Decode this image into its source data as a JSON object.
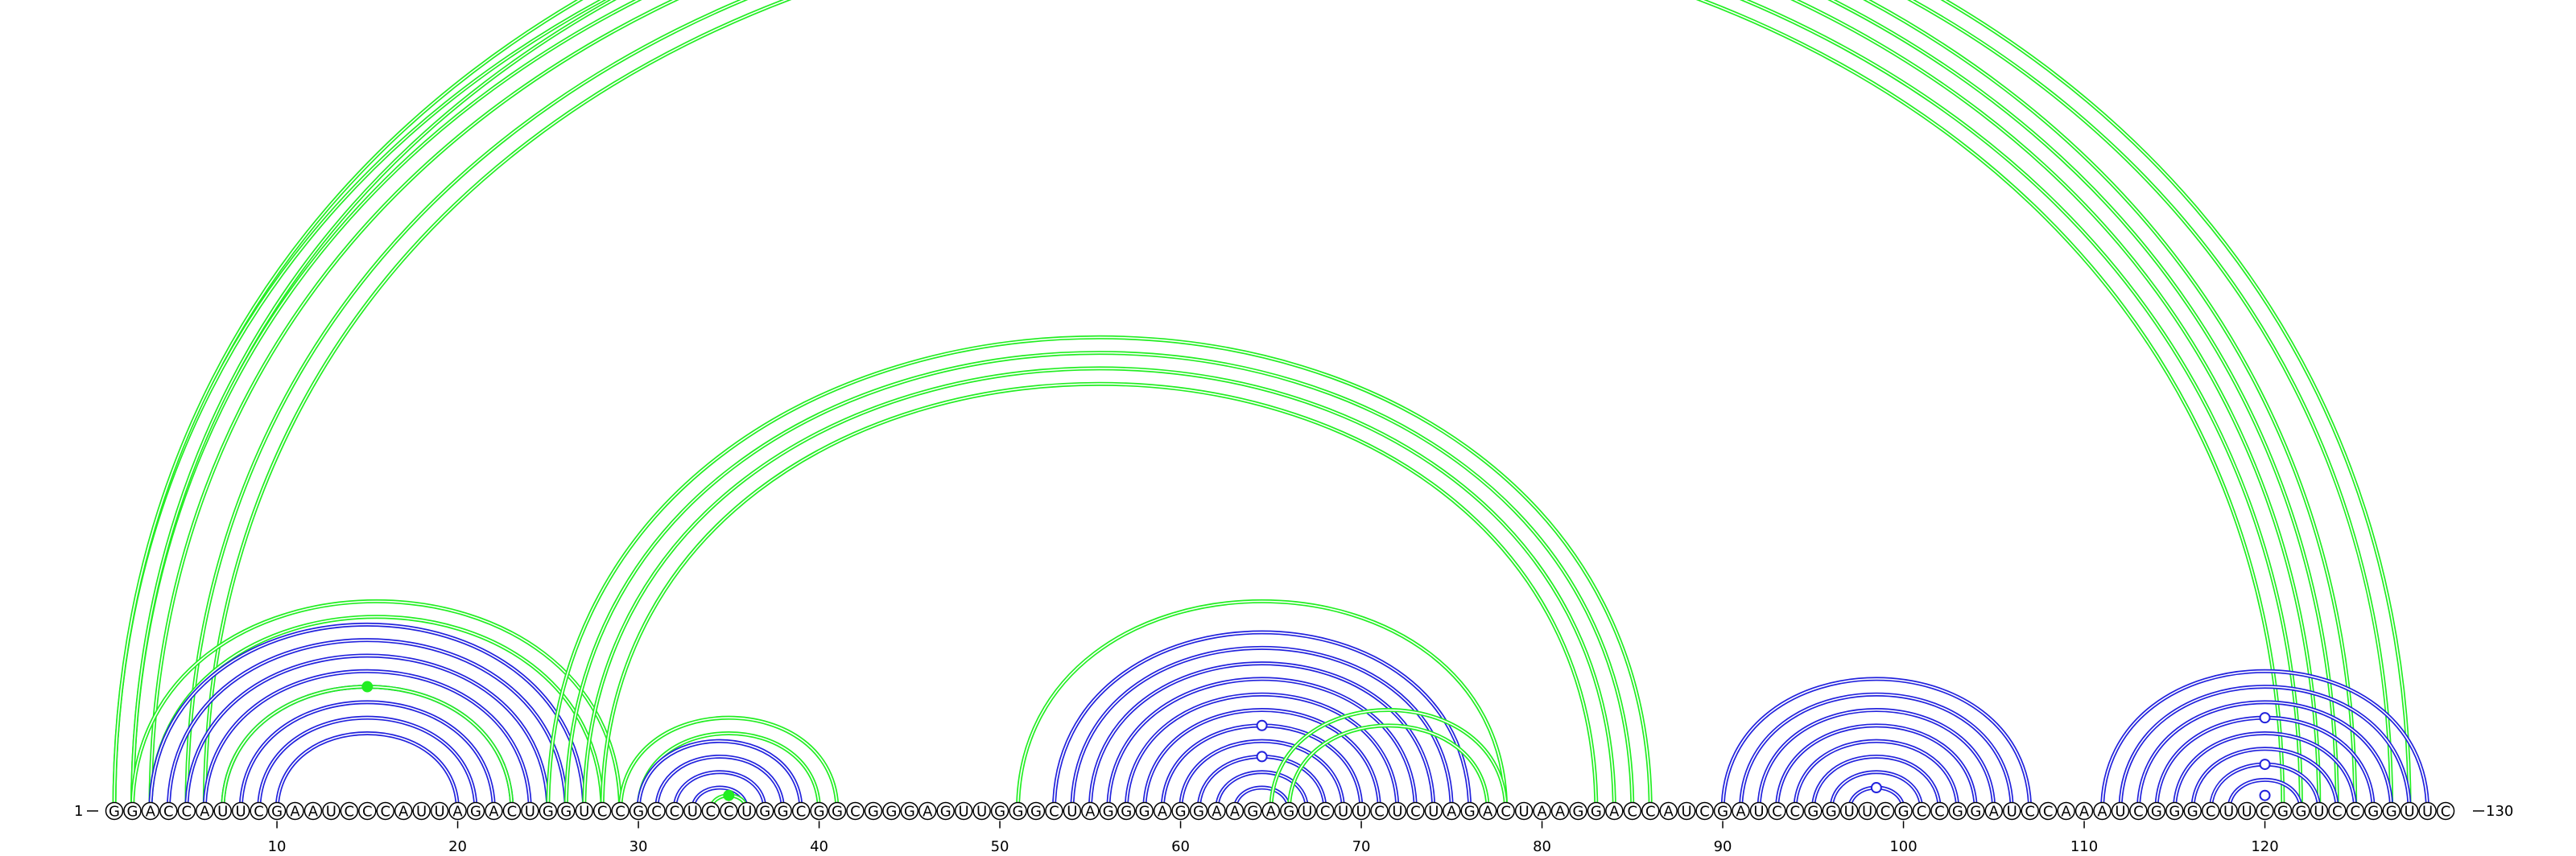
{
  "sequence": "GGACCAUUCGAAUCCCAUUAGACUGGUCCGCCUCCUGGCGGCGGGAGUUGGGCUAGGGAGGAAGAGUCUUCUCUAGACUAAGGACCAUCGAUCCGGUUCGCCGGAUCCAAAUCGGGCUUCGGUCCGGUUC",
  "start_label": "1",
  "end_label": "130",
  "ticks": [
    10,
    20,
    30,
    40,
    50,
    60,
    70,
    80,
    90,
    100,
    110,
    120
  ],
  "colors": {
    "green": "#22ee22",
    "blue": "#2222dd"
  },
  "helices": [
    {
      "color": "green",
      "style": "double",
      "pairs": [
        [
          1,
          125
        ],
        [
          2,
          124
        ],
        [
          3,
          123
        ],
        [
          5,
          122
        ],
        [
          6,
          121
        ]
      ]
    },
    {
      "color": "green",
      "style": "double",
      "pairs": [
        [
          1,
          128
        ],
        [
          2,
          127
        ]
      ]
    },
    {
      "color": "green",
      "style": "double",
      "pairs": [
        [
          2,
          29
        ],
        [
          3,
          28
        ]
      ]
    },
    {
      "color": "blue",
      "style": "double",
      "pairs": [
        [
          3,
          27
        ],
        [
          4,
          26
        ],
        [
          5,
          25
        ],
        [
          6,
          24
        ],
        [
          7,
          23
        ],
        [
          8,
          22
        ]
      ]
    },
    {
      "color": "green",
      "style": "double",
      "pairs": [
        [
          7,
          23
        ]
      ]
    },
    {
      "color": "blue",
      "style": "double",
      "pairs": [
        [
          9,
          21
        ],
        [
          10,
          20
        ]
      ]
    },
    {
      "color": "green",
      "style": "double",
      "pairs": [
        [
          25,
          86
        ],
        [
          26,
          85
        ],
        [
          27,
          84
        ],
        [
          28,
          83
        ]
      ]
    },
    {
      "color": "green",
      "style": "double",
      "pairs": [
        [
          29,
          41
        ],
        [
          30,
          40
        ]
      ]
    },
    {
      "color": "blue",
      "style": "double",
      "pairs": [
        [
          30,
          39
        ],
        [
          31,
          38
        ],
        [
          32,
          37
        ],
        [
          33,
          36
        ]
      ]
    },
    {
      "color": "green",
      "style": "double",
      "pairs": [
        [
          34,
          36
        ]
      ]
    },
    {
      "color": "green",
      "style": "double",
      "pairs": [
        [
          51,
          78
        ]
      ]
    },
    {
      "color": "blue",
      "style": "double",
      "pairs": [
        [
          53,
          76
        ],
        [
          54,
          75
        ],
        [
          55,
          74
        ],
        [
          56,
          73
        ],
        [
          57,
          72
        ],
        [
          58,
          71
        ],
        [
          59,
          70
        ],
        [
          60,
          69
        ],
        [
          61,
          68
        ],
        [
          62,
          67
        ],
        [
          63,
          66
        ]
      ]
    },
    {
      "color": "green",
      "style": "double",
      "pairs": [
        [
          65,
          78
        ],
        [
          66,
          77
        ]
      ]
    },
    {
      "color": "blue",
      "style": "double",
      "pairs": [
        [
          90,
          107
        ],
        [
          91,
          106
        ],
        [
          92,
          105
        ],
        [
          93,
          104
        ],
        [
          94,
          103
        ],
        [
          95,
          102
        ],
        [
          96,
          101
        ],
        [
          97,
          100
        ]
      ]
    },
    {
      "color": "blue",
      "style": "double",
      "pairs": [
        [
          111,
          129
        ],
        [
          112,
          128
        ],
        [
          113,
          127
        ],
        [
          114,
          126
        ],
        [
          115,
          125
        ],
        [
          116,
          124
        ],
        [
          117,
          123
        ],
        [
          118,
          122
        ]
      ]
    }
  ],
  "markers": [
    {
      "i": 1,
      "j": 128,
      "color": "green",
      "filled": false
    },
    {
      "i": 7,
      "j": 23,
      "color": "green",
      "filled": true
    },
    {
      "i": 34,
      "j": 36,
      "color": "green",
      "filled": true
    },
    {
      "i": 59,
      "j": 70,
      "color": "blue",
      "filled": false
    },
    {
      "i": 61,
      "j": 68,
      "color": "blue",
      "filled": false
    },
    {
      "i": 97,
      "j": 100,
      "color": "blue",
      "filled": false
    },
    {
      "i": 114,
      "j": 126,
      "color": "blue",
      "filled": false
    },
    {
      "i": 117,
      "j": 123,
      "color": "blue",
      "filled": false
    },
    {
      "i": 119,
      "j": 121,
      "color": "blue",
      "filled": false
    }
  ]
}
